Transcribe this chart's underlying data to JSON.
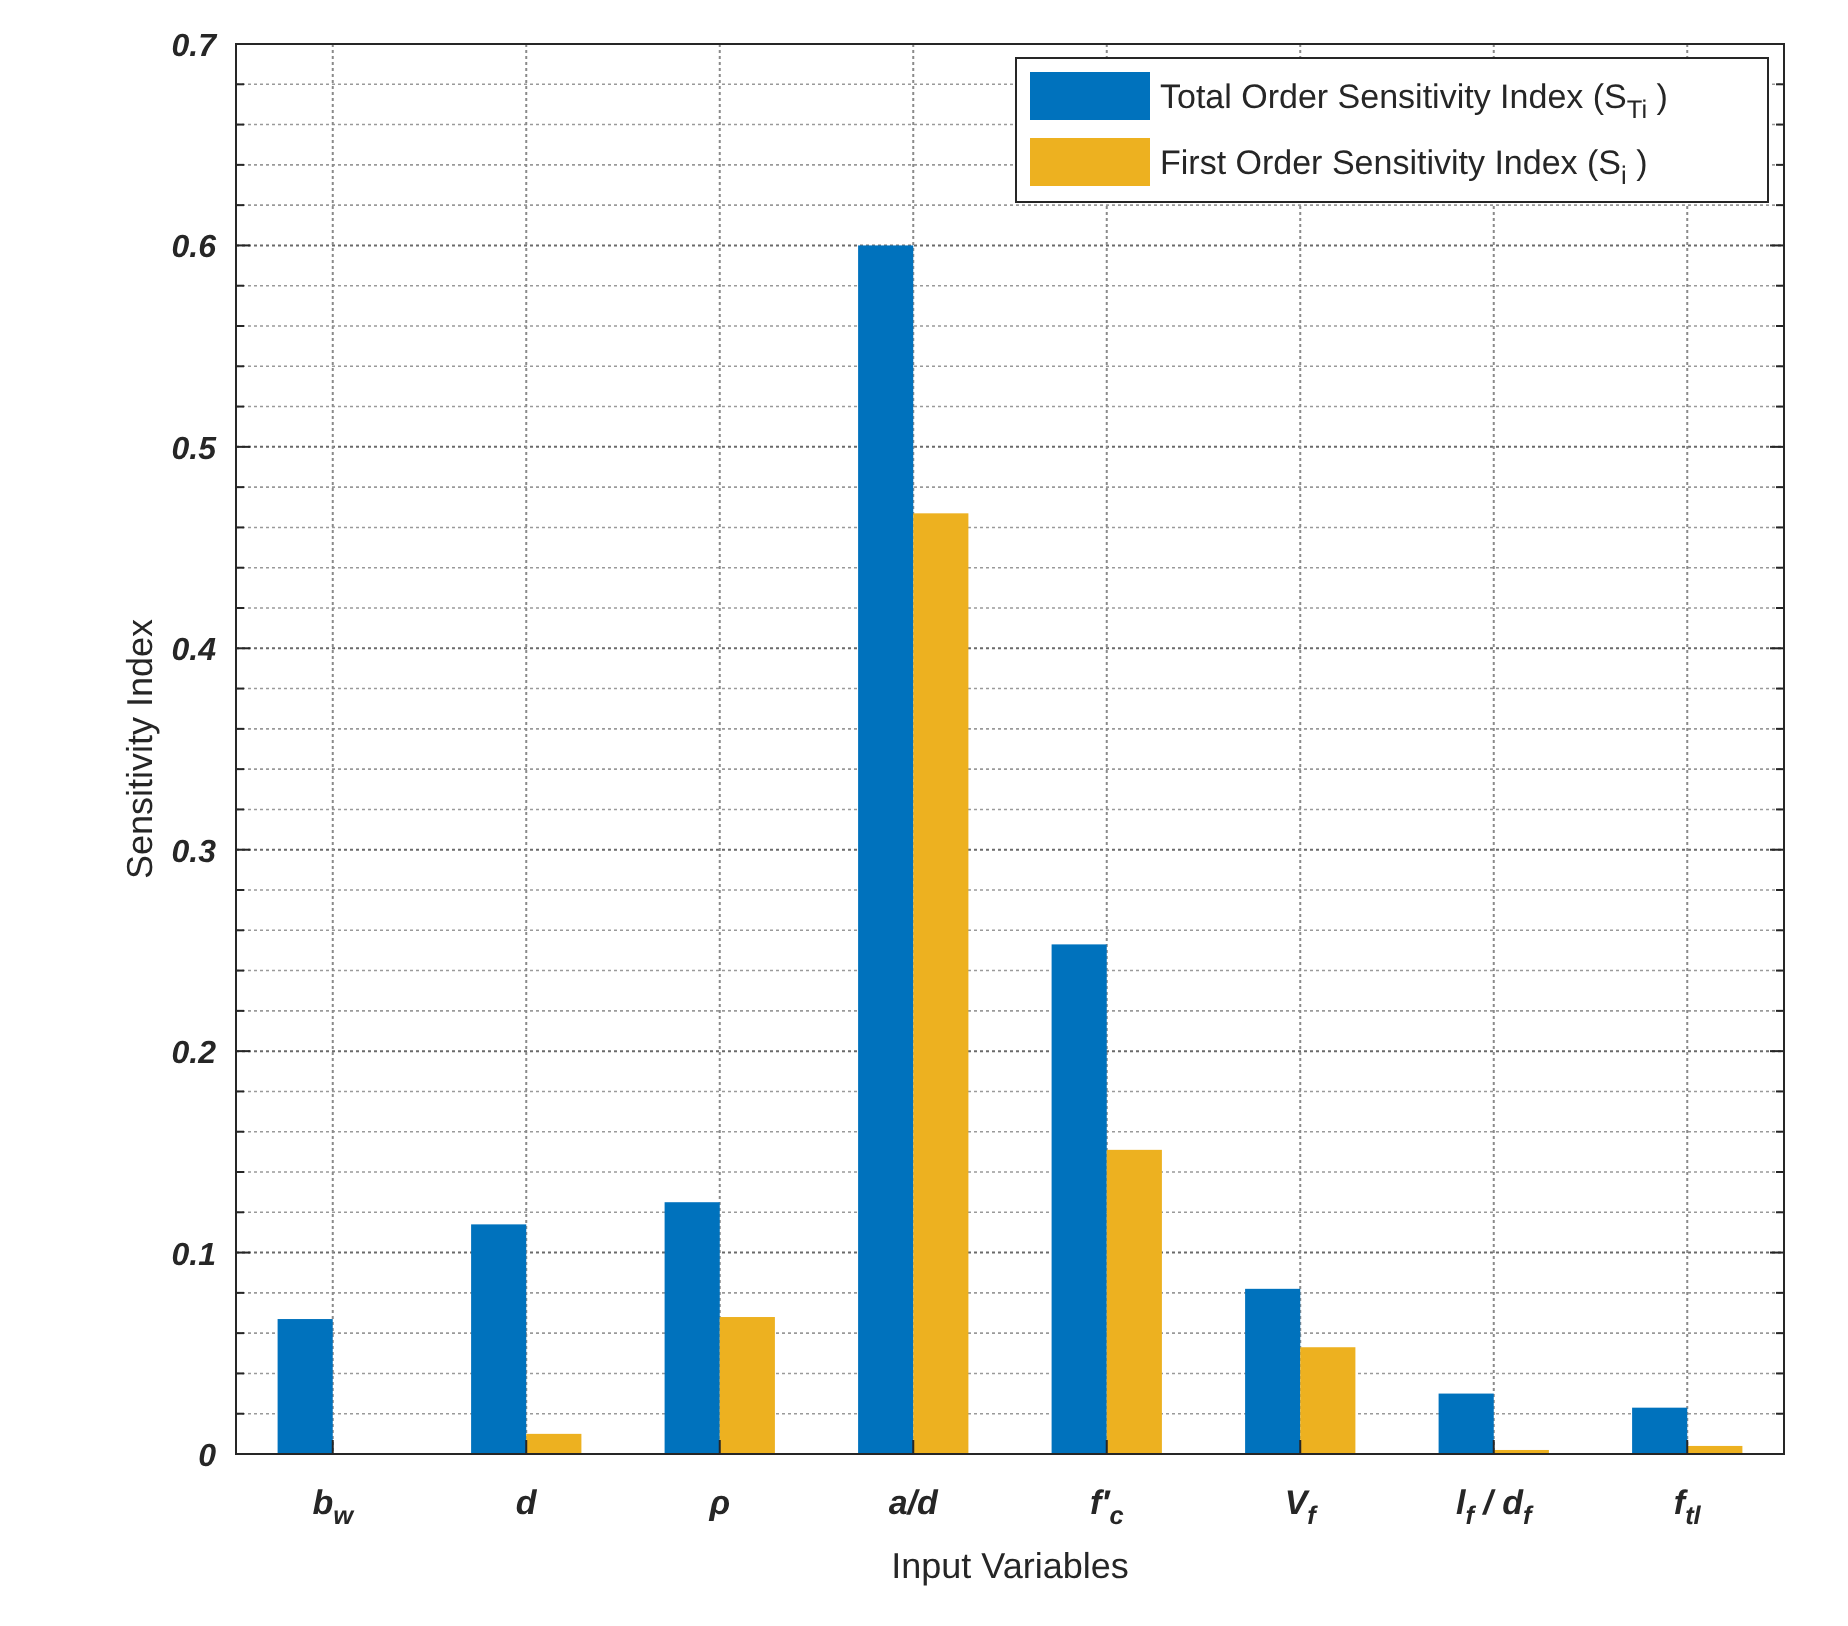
{
  "chart_data": {
    "type": "bar",
    "xlabel": "Input Variables",
    "ylabel": "Sensitivity Index",
    "categories": [
      "b$_{w}$",
      "d",
      "ρ",
      "a/d",
      "f′$_{c}$",
      "V$_{f}$",
      "l$_{f}$ / d$_{f}$",
      "f$_{tl}$"
    ],
    "series": [
      {
        "name": "Total Order Sensitivity Index (S$_{Ti}$ )",
        "color": "#0072bd",
        "values": [
          0.067,
          0.114,
          0.125,
          0.6,
          0.253,
          0.082,
          0.03,
          0.023
        ]
      },
      {
        "name": "First Order Sensitivity Index (S$_{i}$ )",
        "color": "#edb120",
        "values": [
          0,
          0.01,
          0.068,
          0.467,
          0.151,
          0.053,
          0.002,
          0.004
        ]
      }
    ],
    "ylim": [
      0,
      0.7
    ],
    "yticks": [
      0,
      {
        "value": 0.02,
        "label": null
      },
      {
        "value": 0.04,
        "label": null
      },
      {
        "value": 0.06,
        "label": null
      },
      {
        "value": 0.08,
        "label": null
      },
      0.1,
      {
        "value": 0.12,
        "label": null
      },
      {
        "value": 0.14,
        "label": null
      },
      {
        "value": 0.16,
        "label": null
      },
      {
        "value": 0.18,
        "label": null
      },
      0.2,
      {
        "value": 0.22,
        "label": null
      },
      {
        "value": 0.24,
        "label": null
      },
      {
        "value": 0.26,
        "label": null
      },
      {
        "value": 0.28,
        "label": null
      },
      0.3,
      {
        "value": 0.32,
        "label": null
      },
      {
        "value": 0.34,
        "label": null
      },
      {
        "value": 0.36,
        "label": null
      },
      {
        "value": 0.38,
        "label": null
      },
      0.4,
      {
        "value": 0.42,
        "label": null
      },
      {
        "value": 0.44,
        "label": null
      },
      {
        "value": 0.46,
        "label": null
      },
      {
        "value": 0.48,
        "label": null
      },
      0.5,
      {
        "value": 0.52,
        "label": null
      },
      {
        "value": 0.54,
        "label": null
      },
      {
        "value": 0.56,
        "label": null
      },
      {
        "value": 0.58,
        "label": null
      },
      0.6,
      {
        "value": 0.62,
        "label": null
      },
      {
        "value": 0.64,
        "label": null
      },
      {
        "value": 0.66,
        "label": null
      },
      {
        "value": 0.68,
        "label": null
      },
      0.7
    ],
    "grid": true,
    "legend": "top right"
  }
}
